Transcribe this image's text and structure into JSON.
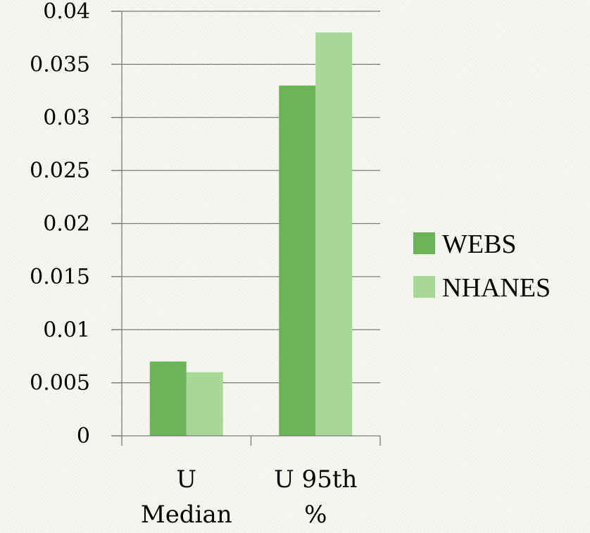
{
  "chart_data": {
    "type": "bar",
    "categories": [
      [
        "U",
        "Median"
      ],
      [
        "U 95th",
        "%"
      ]
    ],
    "series": [
      {
        "name": "WEBS",
        "color": "#6ab356",
        "values": [
          0.007,
          0.033
        ]
      },
      {
        "name": "NHANES",
        "color": "#a8d898",
        "values": [
          0.006,
          0.038
        ]
      }
    ],
    "ylim": [
      0,
      0.04
    ],
    "yticks": [
      "0",
      "0.005",
      "0.01",
      "0.015",
      "0.02",
      "0.025",
      "0.03",
      "0.035",
      "0.04"
    ],
    "grid": true,
    "legend": "right",
    "title": "",
    "xlabel": "",
    "ylabel": ""
  }
}
